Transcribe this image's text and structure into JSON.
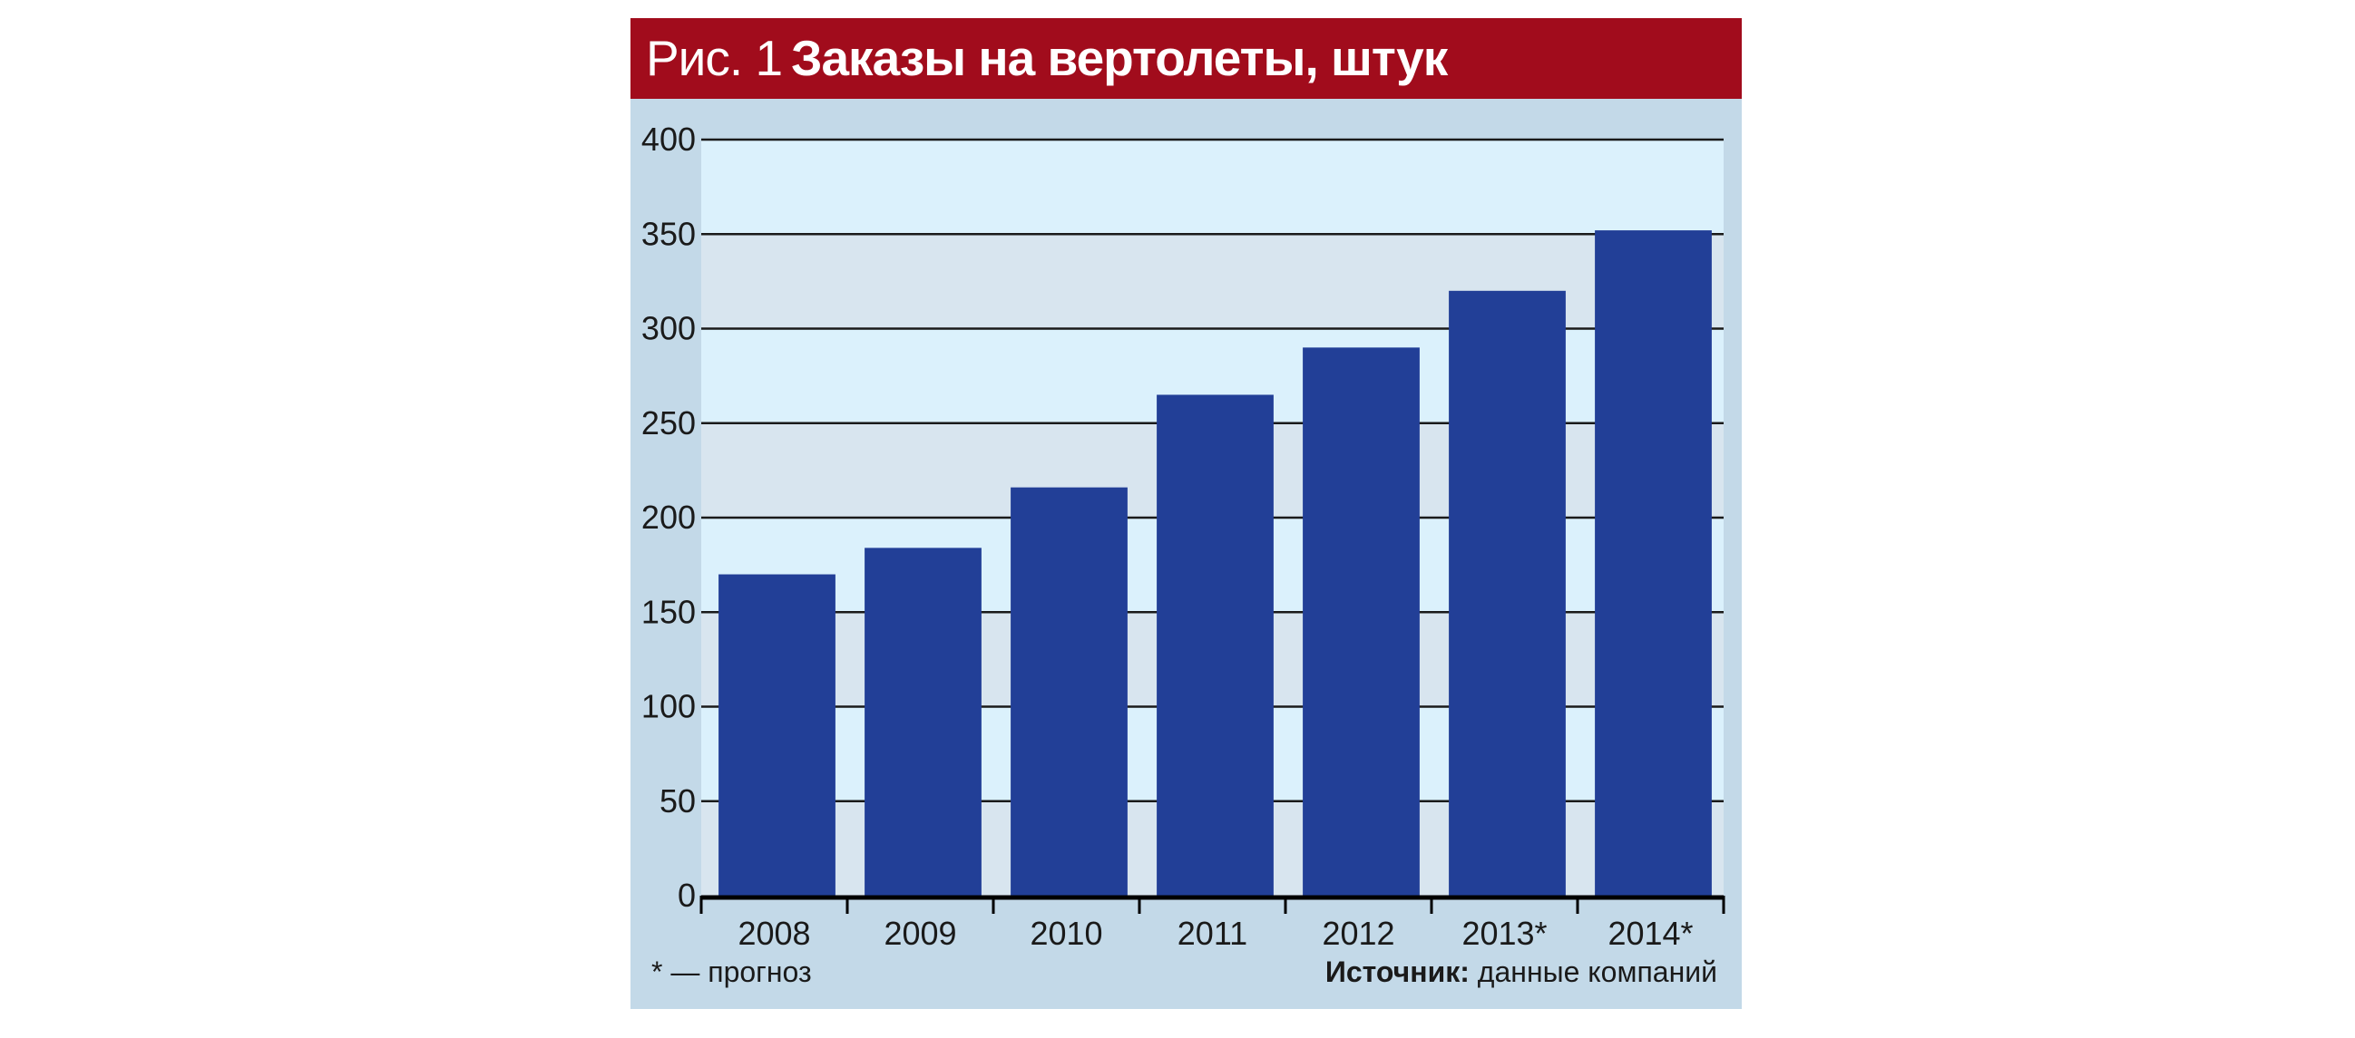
{
  "title": {
    "prefix": "Рис. 1",
    "main": "Заказы на вертолеты, штук"
  },
  "footnote": "* — прогноз",
  "source": {
    "label": "Источник:",
    "text": "данные компаний"
  },
  "colors": {
    "title_bar": "#a10c1c",
    "frame": "#c3d9e8",
    "band_dark": "#d8e5ef",
    "band_light": "#dbf1fc",
    "bar": "#223f97"
  },
  "chart_data": {
    "type": "bar",
    "title": "Заказы на вертолеты, штук",
    "xlabel": "",
    "ylabel": "",
    "categories": [
      "2008",
      "2009",
      "2010",
      "2011",
      "2012",
      "2013*",
      "2014*"
    ],
    "values": [
      170,
      184,
      216,
      265,
      290,
      320,
      352
    ],
    "ylim": [
      0,
      400
    ],
    "yticks": [
      0,
      50,
      100,
      150,
      200,
      250,
      300,
      350,
      400
    ],
    "grid": true,
    "legend": "none"
  }
}
